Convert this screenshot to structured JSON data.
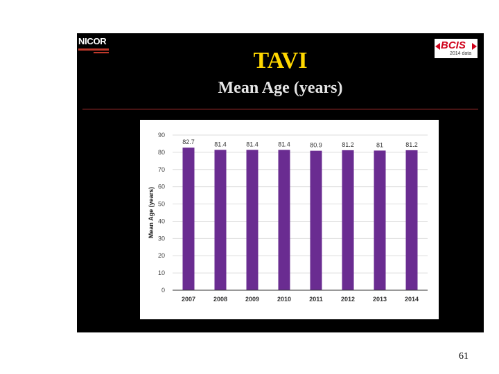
{
  "slide": {
    "logos": {
      "left_text": "NICOR",
      "right_text": "BCIS",
      "right_subtext": "2014 data"
    },
    "title": "TAVI",
    "subtitle": "Mean Age (years)",
    "page_number": "61"
  },
  "colors": {
    "slide_background": "#000000",
    "title": "#ffd700",
    "subtitle": "#e6e6e6",
    "divider": "#b03030",
    "bar": "#6a2c91",
    "accent_red": "#d0021b"
  },
  "chart_data": {
    "type": "bar",
    "title": "",
    "xlabel": "",
    "ylabel": "Mean Age (years)",
    "ylim": [
      0,
      90
    ],
    "yticks": [
      0,
      10,
      20,
      30,
      40,
      50,
      60,
      70,
      80,
      90
    ],
    "grid": true,
    "categories": [
      "2007",
      "2008",
      "2009",
      "2010",
      "2011",
      "2012",
      "2013",
      "2014"
    ],
    "values": [
      82.7,
      81.4,
      81.4,
      81.4,
      80.9,
      81.2,
      81,
      81.2
    ],
    "value_labels": [
      "82.7",
      "81.4",
      "81.4",
      "81.4",
      "80.9",
      "81.2",
      "81",
      "81.2"
    ]
  }
}
